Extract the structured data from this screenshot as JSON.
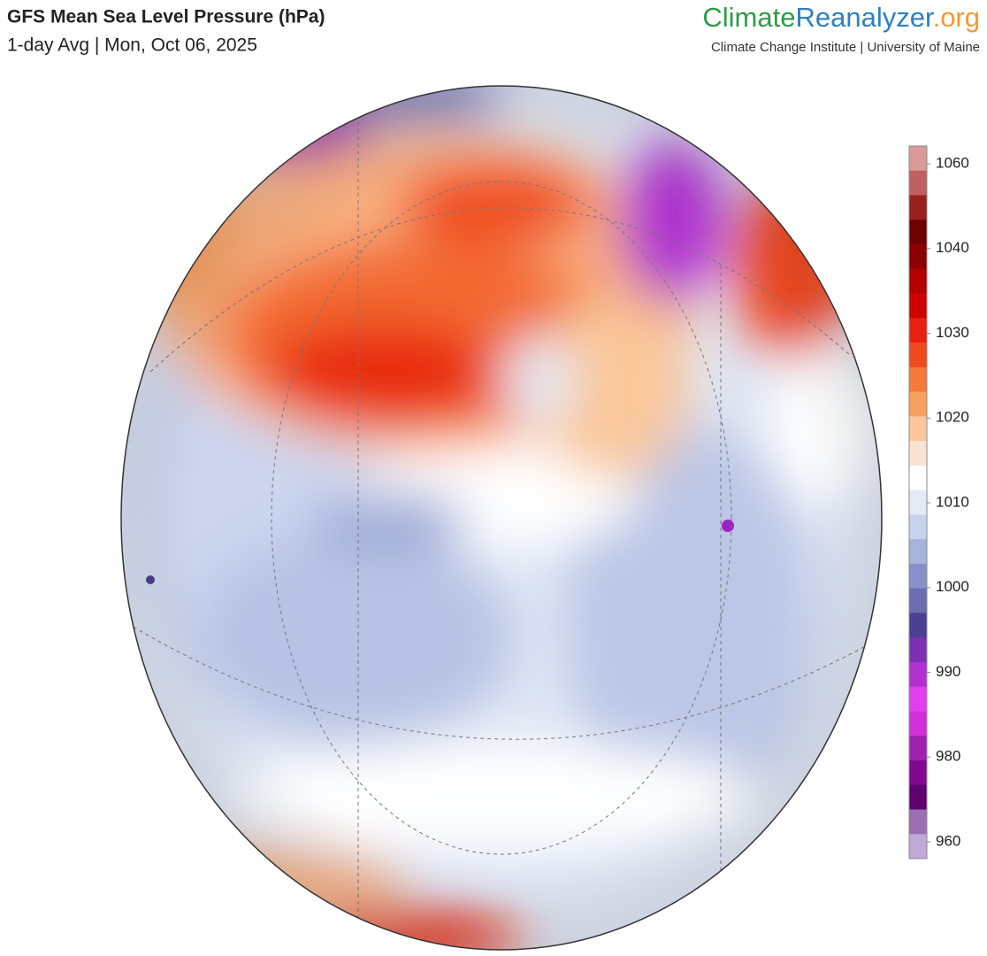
{
  "header": {
    "title": "GFS Mean Sea Level Pressure (hPa)",
    "subtitle": "1-day Avg | Mon, Oct 06, 2025"
  },
  "logo": {
    "brand": [
      "Climate",
      "Reanalyzer",
      ".org"
    ],
    "brand_colors": [
      "#2e9b48",
      "#2f7fc1",
      "#f39a2e"
    ],
    "tagline": "Climate Change Institute | University of Maine"
  },
  "colorbar": {
    "ticks": [
      1060,
      1040,
      1030,
      1020,
      1010,
      1000,
      990,
      980,
      960
    ],
    "colors": [
      "#d89a9a",
      "#c06060",
      "#9a2020",
      "#6e0000",
      "#8c0000",
      "#b40000",
      "#d00000",
      "#e82010",
      "#f04a20",
      "#f47a3a",
      "#f7a060",
      "#fac79a",
      "#fbe4cf",
      "#ffffff",
      "#e4ebf7",
      "#c7d3ec",
      "#a6b4dc",
      "#8791c7",
      "#6a6db0",
      "#4b3f8f",
      "#7a30b0",
      "#b030d0",
      "#e040f0",
      "#d030d8",
      "#a020b0",
      "#800890",
      "#600070",
      "#9a70b0",
      "#c0a8d8"
    ]
  }
}
